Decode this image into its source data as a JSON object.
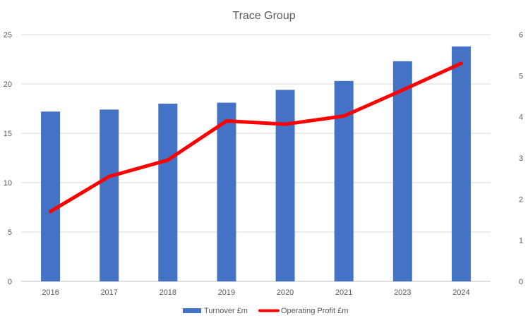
{
  "chart_data": {
    "type": "bar",
    "title": "Trace Group",
    "categories": [
      "2016",
      "2017",
      "2018",
      "2019",
      "2020",
      "2021",
      "2023",
      "2024"
    ],
    "series": [
      {
        "name": "Turnover £m",
        "type": "bar",
        "axis": "left",
        "color": "#4472C4",
        "values": [
          17.2,
          17.4,
          18.0,
          18.1,
          19.4,
          20.3,
          22.3,
          23.8
        ]
      },
      {
        "name": "Operating Profit £m",
        "type": "line",
        "axis": "right",
        "color": "#FF0000",
        "values": [
          1.7,
          2.55,
          2.95,
          3.9,
          3.82,
          4.02,
          4.65,
          5.3
        ]
      }
    ],
    "ylim": [
      0,
      25
    ],
    "yticks": [
      0,
      5,
      10,
      15,
      20,
      25
    ],
    "y2lim": [
      0,
      6
    ],
    "y2ticks": [
      0,
      1,
      2,
      3,
      4,
      5,
      6
    ],
    "xlabel": "",
    "ylabel": "",
    "grid": true,
    "legend": "bottom-center"
  }
}
